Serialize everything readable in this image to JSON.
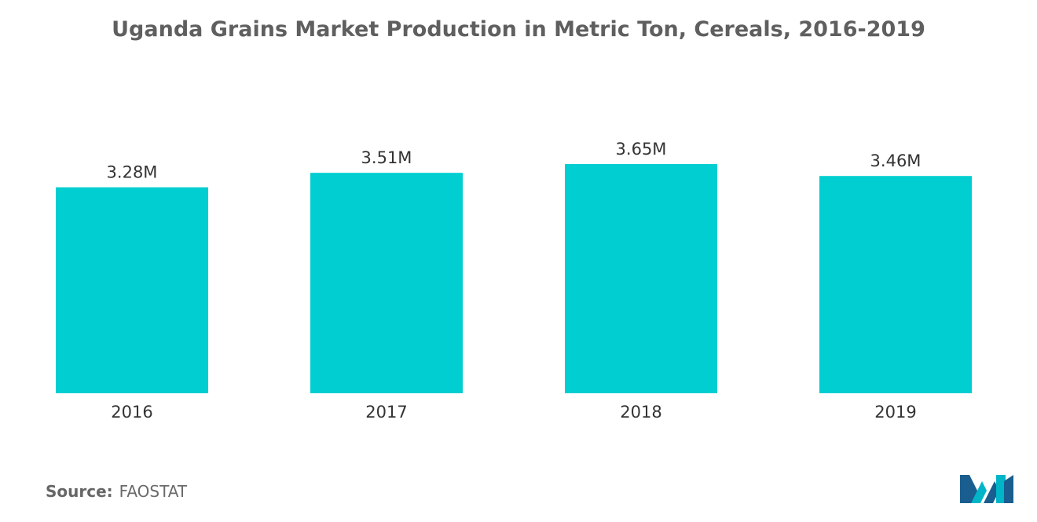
{
  "chart_data": {
    "type": "bar",
    "title": "Uganda Grains Market Production in Metric Ton, Cereals, 2016-2019",
    "categories": [
      "2016",
      "2017",
      "2018",
      "2019"
    ],
    "values": [
      3.28,
      3.51,
      3.65,
      3.46
    ],
    "value_labels": [
      "3.28M",
      "3.51M",
      "3.65M",
      "3.46M"
    ],
    "xlabel": "",
    "ylabel": "",
    "ylim": [
      0,
      3.65
    ],
    "grid": false,
    "legend": "none",
    "bar_color": "#00CED1"
  },
  "source": {
    "label": "Source:",
    "value": "FAOSTAT"
  },
  "logo": {
    "icon": "mordor-intelligence-logo-icon",
    "colors": [
      "#1a5e8f",
      "#00b5c8"
    ]
  }
}
